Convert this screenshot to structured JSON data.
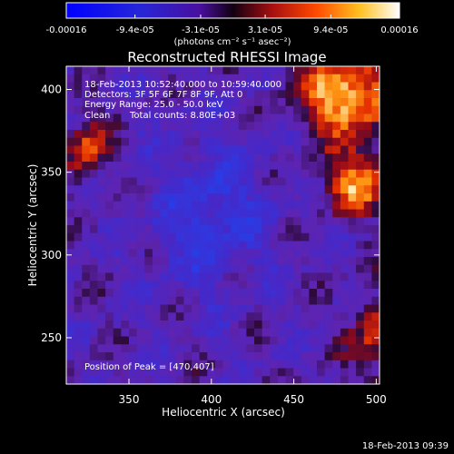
{
  "chart_data": {
    "type": "heatmap",
    "title": "Reconstructed RHESSI Image",
    "xlabel": "Heliocentric X (arcsec)",
    "ylabel": "Heliocentric Y (arcsec)",
    "xlim": [
      312,
      502
    ],
    "ylim": [
      222,
      414
    ],
    "x_ticks": [
      350,
      400,
      450,
      500
    ],
    "y_ticks": [
      250,
      300,
      350,
      400
    ],
    "colorbar": {
      "unit_label": "(photons cm⁻² s⁻¹ asec⁻²)",
      "range": [
        -0.00016,
        0.00016
      ],
      "tick_values": [
        -0.00016,
        -9.4e-05,
        -3.1e-05,
        3.1e-05,
        9.4e-05,
        0.00016
      ],
      "tick_labels": [
        "-0.00016",
        "-9.4e-05",
        "-3.1e-05",
        "3.1e-05",
        "9.4e-05",
        "0.00016"
      ]
    },
    "annotations": [
      "18-Feb-2013 10:52:40.000 to 10:59:40.000",
      "Detectors: 3F 5F 6F 7F 8F 9F, Att 0",
      "Energy Range: 25.0 - 50.0 keV",
      "Clean",
      "Total counts: 8.80E+03"
    ],
    "peak_text": "Position of Peak = [470,407]",
    "peak_position": [
      470,
      407
    ],
    "grid": false,
    "legend": "none"
  },
  "footer": {
    "timestamp": "18-Feb-2013 09:39"
  }
}
